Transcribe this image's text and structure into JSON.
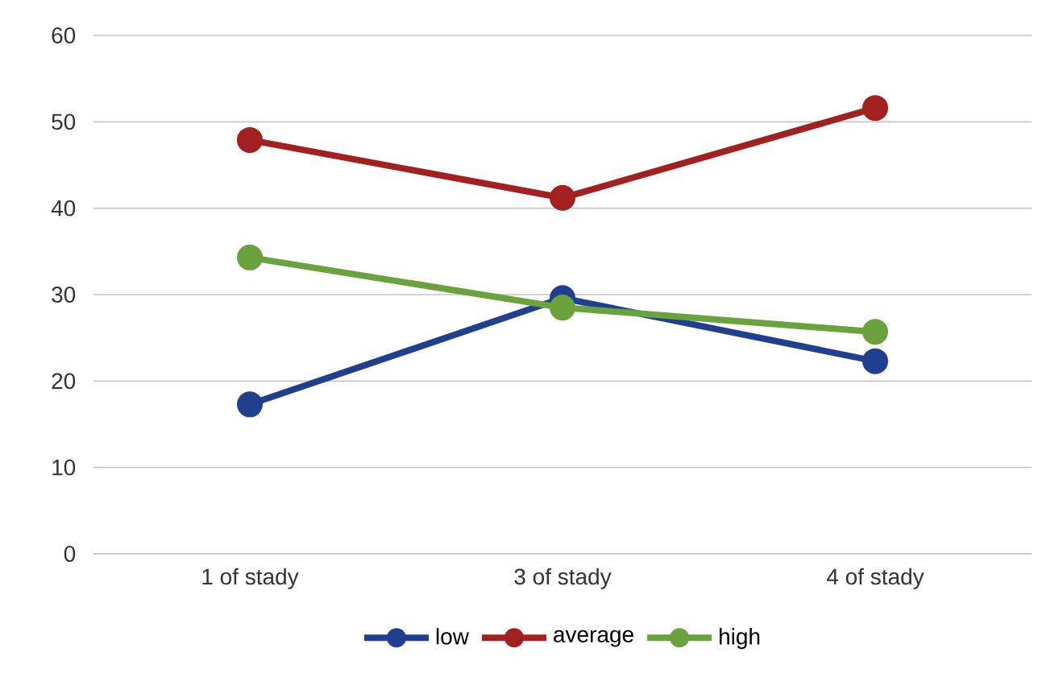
{
  "chart_data": {
    "type": "line",
    "categories": [
      "1 of stady",
      "3 of stady",
      "4 of stady"
    ],
    "series": [
      {
        "name": "low",
        "color": "#203f8f",
        "values": [
          17.3,
          29.6,
          22.3
        ]
      },
      {
        "name": "average",
        "color": "#a32020",
        "values": [
          47.9,
          41.2,
          51.6
        ]
      },
      {
        "name": "high",
        "color": "#6aa23e",
        "values": [
          34.3,
          28.5,
          25.7
        ]
      }
    ],
    "ylim": [
      0,
      60
    ],
    "yticks": [
      0,
      10,
      20,
      30,
      40,
      50,
      60
    ],
    "grid": "y",
    "legend": "bottom",
    "marker": "circle",
    "line_style": "solid"
  }
}
